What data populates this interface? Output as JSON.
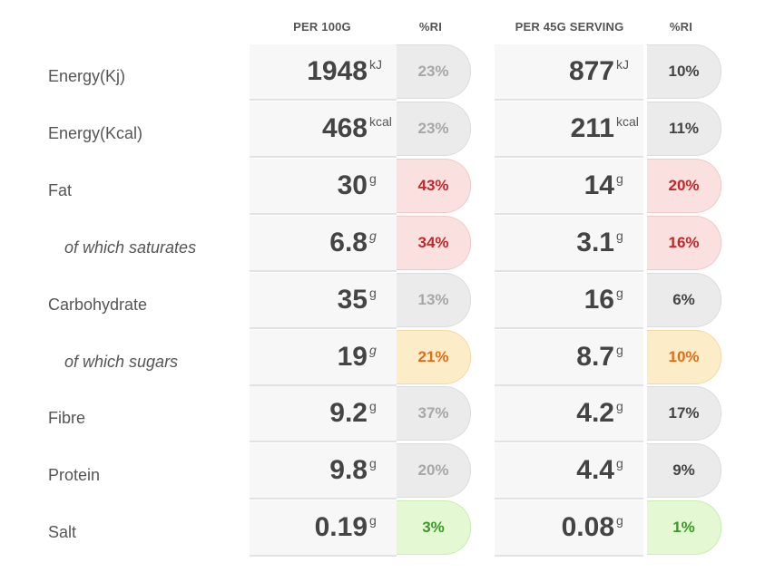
{
  "headers": {
    "per_100g": "PER 100G",
    "ri_1": "%RI",
    "per_serving": "PER 45G SERVING",
    "ri_2": "%RI"
  },
  "rows": [
    {
      "label": "Energy(Kj)",
      "sub": false,
      "v100": "1948",
      "u100": "kJ",
      "ri100": "23%",
      "ri100_level": "grey",
      "vs": "877",
      "us": "kJ",
      "ris": "10%",
      "ris_level": "grey"
    },
    {
      "label": "Energy(Kcal)",
      "sub": false,
      "v100": "468",
      "u100": "kcal",
      "ri100": "23%",
      "ri100_level": "grey",
      "vs": "211",
      "us": "kcal",
      "ris": "11%",
      "ris_level": "grey"
    },
    {
      "label": "Fat",
      "sub": false,
      "v100": "30",
      "u100": "g",
      "ri100": "43%",
      "ri100_level": "red",
      "vs": "14",
      "us": "g",
      "ris": "20%",
      "ris_level": "red"
    },
    {
      "label": "of which saturates",
      "sub": true,
      "v100": "6.8",
      "u100": "g",
      "ri100": "34%",
      "ri100_level": "red",
      "vs": "3.1",
      "us": "g",
      "ris": "16%",
      "ris_level": "red"
    },
    {
      "label": "Carbohydrate",
      "sub": false,
      "v100": "35",
      "u100": "g",
      "ri100": "13%",
      "ri100_level": "grey",
      "vs": "16",
      "us": "g",
      "ris": "6%",
      "ris_level": "grey"
    },
    {
      "label": "of which sugars",
      "sub": true,
      "v100": "19",
      "u100": "g",
      "ri100": "21%",
      "ri100_level": "amber",
      "vs": "8.7",
      "us": "g",
      "ris": "10%",
      "ris_level": "amber"
    },
    {
      "label": "Fibre",
      "sub": false,
      "v100": "9.2",
      "u100": "g",
      "ri100": "37%",
      "ri100_level": "grey",
      "vs": "4.2",
      "us": "g",
      "ris": "17%",
      "ris_level": "grey"
    },
    {
      "label": "Protein",
      "sub": false,
      "v100": "9.8",
      "u100": "g",
      "ri100": "20%",
      "ri100_level": "grey",
      "vs": "4.4",
      "us": "g",
      "ris": "9%",
      "ris_level": "grey"
    },
    {
      "label": "Salt",
      "sub": false,
      "v100": "0.19",
      "u100": "g",
      "ri100": "3%",
      "ri100_level": "green",
      "vs": "0.08",
      "us": "g",
      "ris": "1%",
      "ris_level": "green"
    }
  ],
  "colors": {
    "grey": "#ebebeb",
    "red": "#fbe0e0",
    "amber": "#fdecc8",
    "green": "#e4f9d3"
  }
}
